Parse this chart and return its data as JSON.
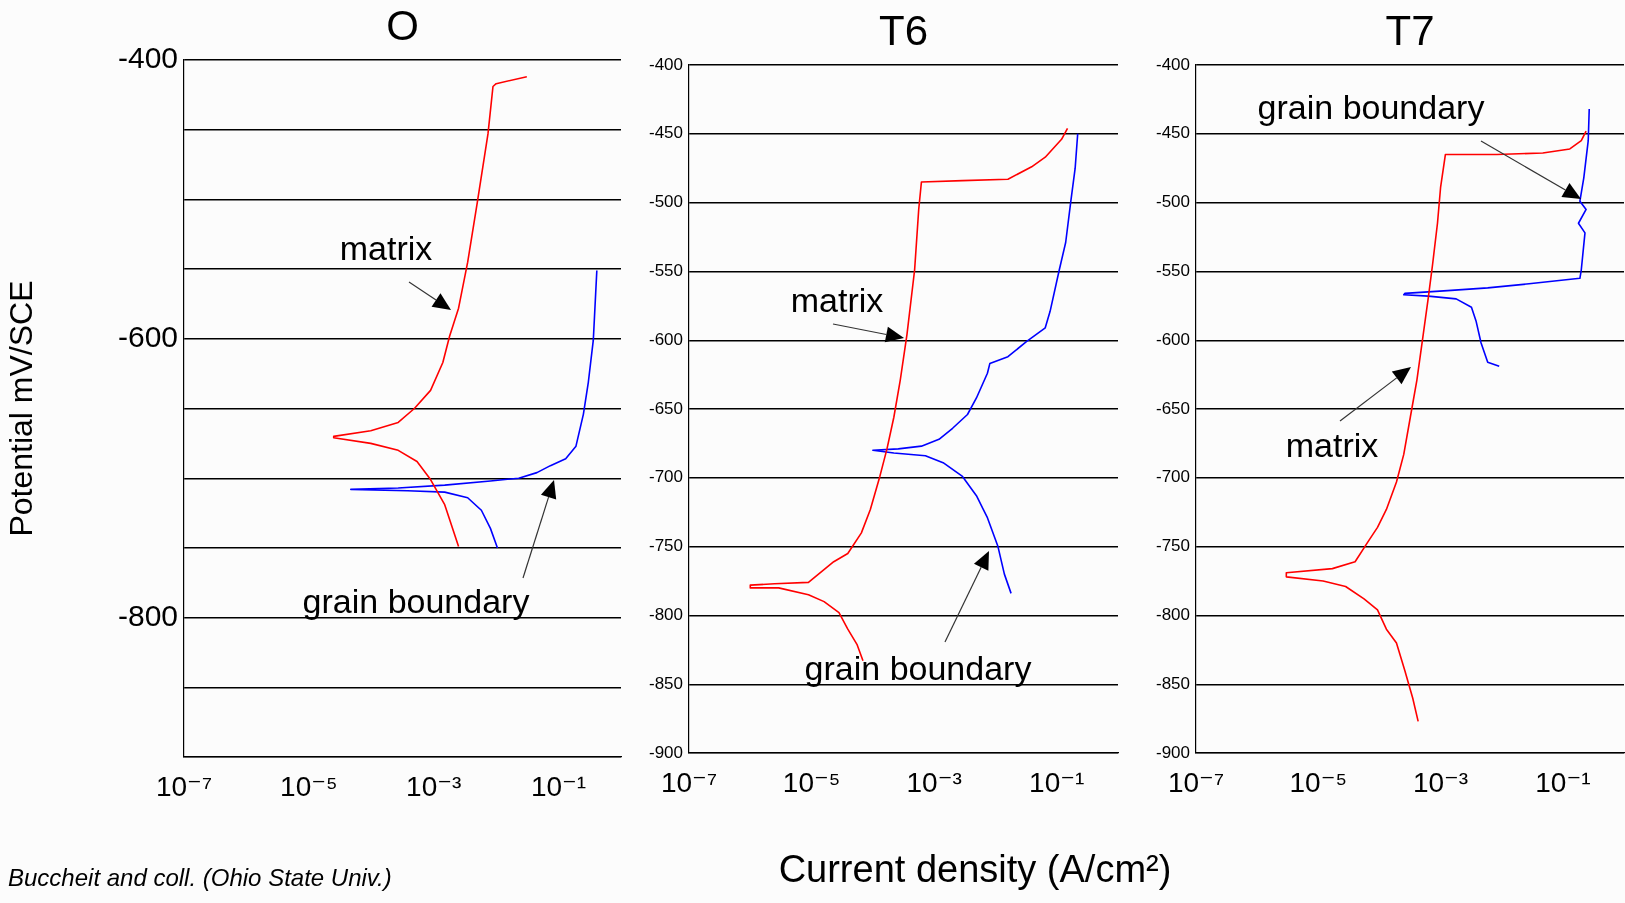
{
  "chart_data": [
    {
      "type": "line",
      "title": "O",
      "ylabel": "Potential mV/SCE",
      "log": "x",
      "grid": "y",
      "xlim": [
        1e-07,
        1
      ],
      "ylim": [
        -900,
        -400
      ],
      "xticks": [
        {
          "value": 1e-07,
          "label": "10⁻⁷"
        },
        {
          "value": 1e-05,
          "label": "10⁻⁵"
        },
        {
          "value": 0.001,
          "label": "10⁻³"
        },
        {
          "value": 0.1,
          "label": "10⁻¹"
        }
      ],
      "yticks": [
        -400,
        {
          "value": -450,
          "label": null
        },
        {
          "value": -500,
          "label": null
        },
        {
          "value": -550,
          "label": null
        },
        -600,
        {
          "value": -650,
          "label": null
        },
        {
          "value": -700,
          "label": null
        },
        {
          "value": -750,
          "label": null
        },
        -800,
        {
          "value": -850,
          "label": null
        },
        {
          "value": -900,
          "label": null
        }
      ],
      "series": [
        {
          "color": "#ff0000",
          "x": [
            0.031,
            0.01,
            0.0089,
            0.0074,
            0.005,
            0.0035,
            0.0025,
            0.0018,
            0.0014,
            0.00089,
            0.00049,
            0.00027,
            9.8e-05,
            2.5e-05,
            2.5e-05,
            9.8e-05,
            0.00027,
            0.00054,
            0.00089,
            0.0015,
            0.0025
          ],
          "values": [
            -412,
            -417,
            -419,
            -453,
            -502,
            -545,
            -578,
            -598,
            -617,
            -637,
            -650,
            -660,
            -666,
            -670,
            -671,
            -675,
            -680,
            -688,
            -701,
            -719,
            -749
          ]
        },
        {
          "color": "#0000ff",
          "x": [
            0.41,
            0.36,
            0.3,
            0.25,
            0.19,
            0.13,
            0.074,
            0.045,
            0.023,
            0.0081,
            0.0015,
            0.00027,
            4.7e-05,
            0.00038,
            0.0015,
            0.0035,
            0.0058,
            0.0081,
            0.0105
          ],
          "values": [
            -551,
            -601,
            -631,
            -654,
            -677,
            -686,
            -691,
            -696,
            -700,
            -702,
            -705,
            -707,
            -708,
            -709,
            -710,
            -714,
            -723,
            -736,
            -750
          ]
        }
      ],
      "annotations": [
        "matrix",
        "grain boundary",
        "Buccheit and coll.  (Ohio State Univ.)"
      ]
    },
    {
      "type": "line",
      "title": "T6",
      "xlabel": "Current density (A/cm²)",
      "log": "x",
      "grid": "y",
      "xlim": [
        1e-07,
        1
      ],
      "ylim": [
        -900,
        -400
      ],
      "xticks": [
        {
          "value": 1e-07,
          "label": "10⁻⁷"
        },
        {
          "value": 1e-05,
          "label": "10⁻⁵"
        },
        {
          "value": 0.001,
          "label": "10⁻³"
        },
        {
          "value": 0.1,
          "label": "10⁻¹"
        }
      ],
      "yticks": [
        -400,
        -450,
        -500,
        -550,
        -600,
        -650,
        -700,
        -750,
        -800,
        -850,
        -900
      ],
      "series": [
        {
          "color": "#ff0000",
          "x": [
            0.15,
            0.12,
            0.065,
            0.039,
            0.016,
            0.0029,
            0.00062,
            0.00056,
            0.00048,
            0.00036,
            0.00028,
            0.00022,
            0.00017,
            0.00013,
            9.1e-05,
            6.5e-05,
            3.9e-05,
            2.3e-05,
            8.9e-06,
            2.5e-06,
            1e-06,
            1e-06,
            2.9e-06,
            8.9e-06,
            1.6e-05,
            2.8e-05,
            3.9e-05,
            5.5e-05,
            6.9e-05
          ],
          "values": [
            -446,
            -454,
            -467,
            -474,
            -483,
            -484,
            -485,
            -505,
            -549,
            -596,
            -629,
            -656,
            -679,
            -699,
            -723,
            -740,
            -755,
            -761,
            -776,
            -777,
            -778,
            -780,
            -780,
            -785,
            -790,
            -798,
            -810,
            -821,
            -833
          ]
        },
        {
          "color": "#0000ff",
          "x": [
            0.22,
            0.2,
            0.17,
            0.14,
            0.11,
            0.078,
            0.065,
            0.032,
            0.016,
            0.0081,
            0.0074,
            0.0049,
            0.0035,
            0.002,
            0.0012,
            0.00062,
            0.00026,
            0.0001,
            0.00022,
            0.00072,
            0.0014,
            0.0029,
            0.0049,
            0.0074,
            0.011,
            0.014,
            0.018
          ],
          "values": [
            -450,
            -475,
            -499,
            -529,
            -549,
            -579,
            -591,
            -601,
            -612,
            -617,
            -624,
            -642,
            -654,
            -664,
            -672,
            -677,
            -679,
            -680,
            -682,
            -684,
            -689,
            -699,
            -713,
            -729,
            -750,
            -770,
            -784
          ]
        }
      ],
      "annotations": [
        "matrix",
        "grain boundary"
      ]
    },
    {
      "type": "line",
      "title": "T7",
      "log": "x",
      "grid": "y",
      "xlim": [
        1e-07,
        1
      ],
      "ylim": [
        -900,
        -400
      ],
      "xticks": [
        {
          "value": 1e-07,
          "label": "10⁻⁷"
        },
        {
          "value": 1e-05,
          "label": "10⁻⁵"
        },
        {
          "value": 0.001,
          "label": "10⁻³"
        },
        {
          "value": 0.1,
          "label": "10⁻¹"
        }
      ],
      "yticks": [
        -400,
        -450,
        -500,
        -550,
        -600,
        -650,
        -700,
        -750,
        -800,
        -850,
        -900
      ],
      "series": [
        {
          "color": "#ff0000",
          "x": [
            0.24,
            0.2,
            0.13,
            0.047,
            0.0083,
            0.0012,
            0.001,
            0.00089,
            0.00074,
            0.00063,
            0.00052,
            0.00041,
            0.00032,
            0.00025,
            0.00019,
            0.00013,
            9.3e-05,
            6.6e-05,
            4e-05,
            1.7e-05,
            3e-06,
            3e-06,
            1.2e-05,
            2.8e-05,
            5.6e-05,
            9.3e-05,
            0.00013,
            0.00019,
            0.00026,
            0.00035,
            0.00043
          ],
          "values": [
            -448,
            -455,
            -461,
            -464,
            -465,
            -465,
            -489,
            -515,
            -545,
            -569,
            -596,
            -629,
            -656,
            -683,
            -703,
            -723,
            -736,
            -746,
            -761,
            -766,
            -769,
            -772,
            -775,
            -779,
            -788,
            -796,
            -810,
            -820,
            -840,
            -860,
            -877
          ]
        },
        {
          "color": "#0000ff",
          "x": [
            0.27,
            0.26,
            0.22,
            0.19,
            0.24,
            0.18,
            0.23,
            0.2,
            0.19,
            0.028,
            0.0059,
            0.0013,
            0.00026,
            0.00025,
            0.00063,
            0.0018,
            0.0032,
            0.0038,
            0.0046,
            0.0059,
            0.0091
          ],
          "values": [
            -432,
            -455,
            -482,
            -499,
            -505,
            -515,
            -522,
            -549,
            -555,
            -559,
            -562,
            -564,
            -566,
            -567,
            -568,
            -570,
            -576,
            -586,
            -602,
            -616,
            -619
          ]
        }
      ],
      "annotations": [
        "grain boundary",
        "matrix"
      ]
    }
  ]
}
